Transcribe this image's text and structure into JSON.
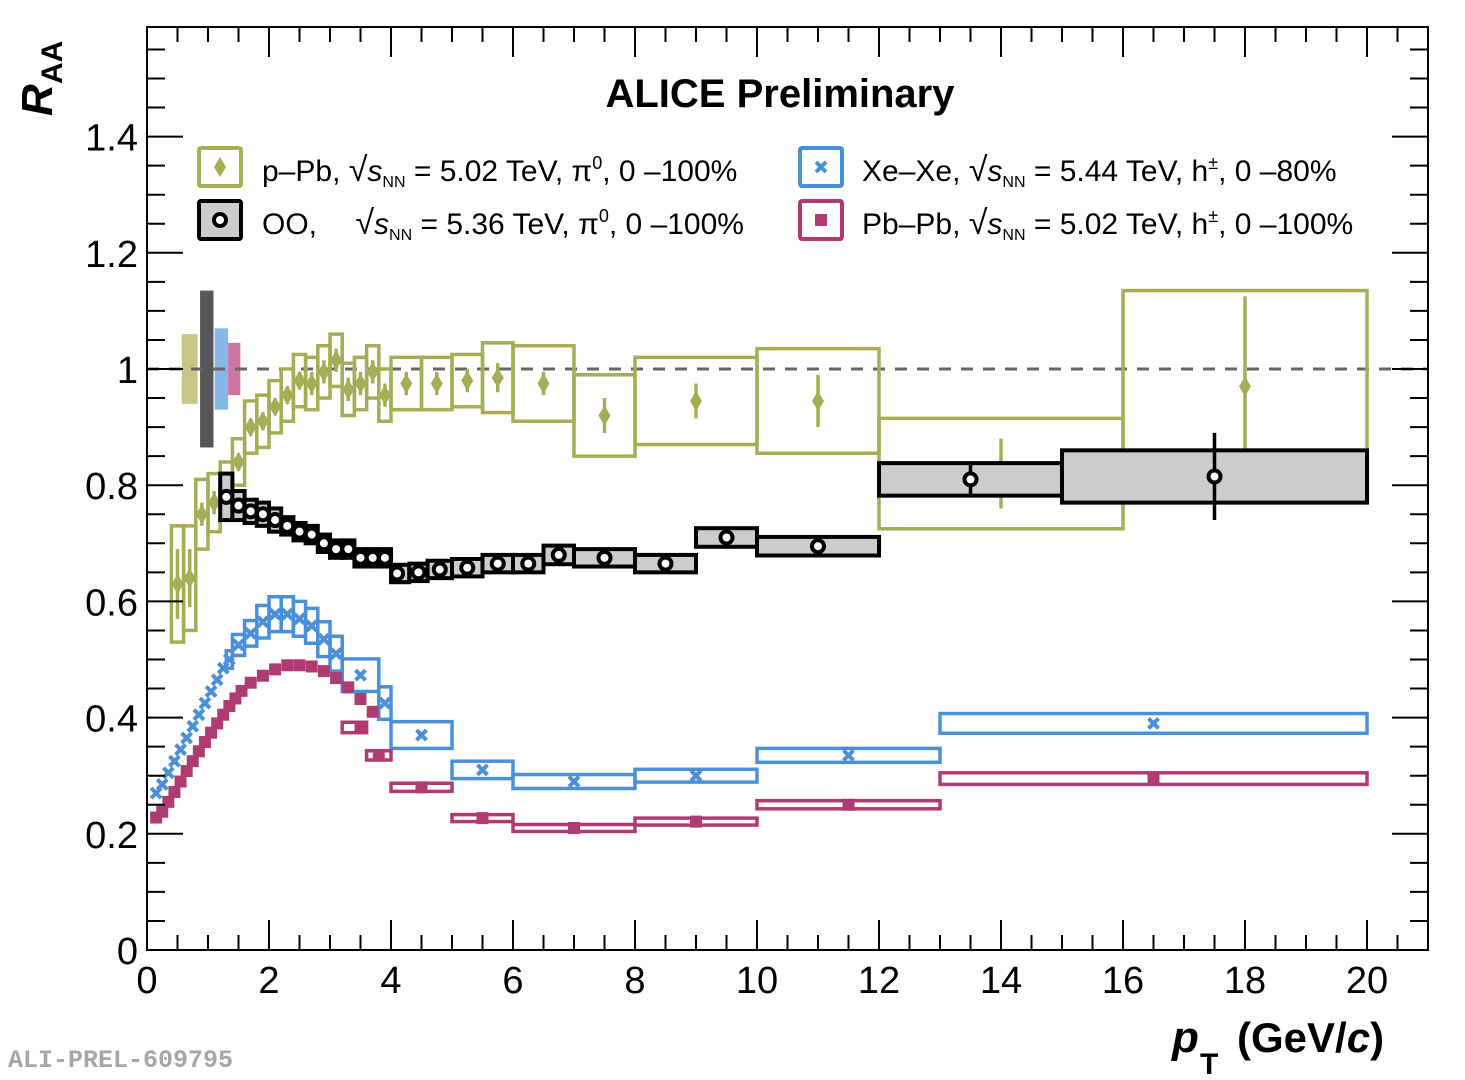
{
  "chart_data": {
    "type": "scatter",
    "title": "ALICE Preliminary",
    "xlabel": "p_T (GeV/c)",
    "xlabel_parts": {
      "main": "p",
      "sub": "T",
      "unit": "(GeV/",
      "unit_italic": "c",
      "close": ")"
    },
    "ylabel": "R_AA",
    "ylabel_parts": {
      "main": "R",
      "sub": "AA"
    },
    "xlim": [
      0,
      21
    ],
    "ylim": [
      0,
      1.6
    ],
    "xticks": [
      0,
      2,
      4,
      6,
      8,
      10,
      12,
      14,
      16,
      18,
      20
    ],
    "xtick_labels": [
      "0",
      "2",
      "4",
      "6",
      "8",
      "10",
      "12",
      "14",
      "16",
      "18",
      "20"
    ],
    "yticks": [
      0,
      0.2,
      0.4,
      0.6,
      0.8,
      1,
      1.2,
      1.4
    ],
    "ytick_labels": [
      "0",
      "0.2",
      "0.4",
      "0.6",
      "0.8",
      "1",
      "1.2",
      "1.4"
    ],
    "reference_line": {
      "y": 1,
      "style": "dashed",
      "color": "#666666"
    },
    "legend_placement": "top",
    "watermark": "ALI-PREL-609795",
    "normalization_boxes": [
      {
        "series": "p-Pb",
        "low": 0.94,
        "high": 1.06,
        "color": "#c3c383"
      },
      {
        "series": "OO",
        "low": 0.865,
        "high": 1.135,
        "color": "#4d4d4d"
      },
      {
        "series": "Xe-Xe",
        "low": 0.93,
        "high": 1.07,
        "color": "#7fb3e6"
      },
      {
        "series": "Pb-Pb",
        "low": 0.955,
        "high": 1.045,
        "color": "#c96f9f"
      }
    ],
    "series": [
      {
        "name": "p-Pb",
        "legend": {
          "sys": "p–Pb,",
          "sqrt": "s",
          "sub": "NN",
          "rest": "= 5.02 TeV, π",
          "sup": "0",
          "tail": ", 0 –100%"
        },
        "marker": "diamond",
        "color": "#a5ad55",
        "fill_box": "none",
        "points": [
          {
            "x": 0.5,
            "xlo": 0.4,
            "xhi": 0.6,
            "y": 0.63,
            "stat": 0.06,
            "sys": 0.1
          },
          {
            "x": 0.7,
            "xlo": 0.6,
            "xhi": 0.8,
            "y": 0.64,
            "stat": 0.05,
            "sys": 0.09
          },
          {
            "x": 0.9,
            "xlo": 0.8,
            "xhi": 1.0,
            "y": 0.75,
            "stat": 0.02,
            "sys": 0.06
          },
          {
            "x": 1.1,
            "xlo": 1.0,
            "xhi": 1.2,
            "y": 0.77,
            "stat": 0.02,
            "sys": 0.05
          },
          {
            "x": 1.3,
            "xlo": 1.2,
            "xhi": 1.4,
            "y": 0.8,
            "stat": 0.015,
            "sys": 0.04
          },
          {
            "x": 1.5,
            "xlo": 1.4,
            "xhi": 1.6,
            "y": 0.84,
            "stat": 0.015,
            "sys": 0.04
          },
          {
            "x": 1.7,
            "xlo": 1.6,
            "xhi": 1.8,
            "y": 0.9,
            "stat": 0.015,
            "sys": 0.045
          },
          {
            "x": 1.9,
            "xlo": 1.8,
            "xhi": 2.0,
            "y": 0.91,
            "stat": 0.015,
            "sys": 0.045
          },
          {
            "x": 2.1,
            "xlo": 2.0,
            "xhi": 2.2,
            "y": 0.935,
            "stat": 0.015,
            "sys": 0.045
          },
          {
            "x": 2.3,
            "xlo": 2.2,
            "xhi": 2.4,
            "y": 0.955,
            "stat": 0.015,
            "sys": 0.045
          },
          {
            "x": 2.5,
            "xlo": 2.4,
            "xhi": 2.6,
            "y": 0.98,
            "stat": 0.015,
            "sys": 0.045
          },
          {
            "x": 2.7,
            "xlo": 2.6,
            "xhi": 2.8,
            "y": 0.975,
            "stat": 0.02,
            "sys": 0.045
          },
          {
            "x": 2.9,
            "xlo": 2.8,
            "xhi": 3.0,
            "y": 0.995,
            "stat": 0.02,
            "sys": 0.045
          },
          {
            "x": 3.1,
            "xlo": 3.0,
            "xhi": 3.2,
            "y": 1.015,
            "stat": 0.02,
            "sys": 0.045
          },
          {
            "x": 3.3,
            "xlo": 3.2,
            "xhi": 3.4,
            "y": 0.965,
            "stat": 0.02,
            "sys": 0.045
          },
          {
            "x": 3.5,
            "xlo": 3.4,
            "xhi": 3.6,
            "y": 0.975,
            "stat": 0.02,
            "sys": 0.045
          },
          {
            "x": 3.7,
            "xlo": 3.6,
            "xhi": 3.8,
            "y": 0.995,
            "stat": 0.02,
            "sys": 0.045
          },
          {
            "x": 3.9,
            "xlo": 3.8,
            "xhi": 4.0,
            "y": 0.955,
            "stat": 0.02,
            "sys": 0.045
          },
          {
            "x": 4.25,
            "xlo": 4.0,
            "xhi": 4.5,
            "y": 0.975,
            "stat": 0.02,
            "sys": 0.045
          },
          {
            "x": 4.75,
            "xlo": 4.5,
            "xhi": 5.0,
            "y": 0.975,
            "stat": 0.02,
            "sys": 0.045
          },
          {
            "x": 5.25,
            "xlo": 5.0,
            "xhi": 5.5,
            "y": 0.98,
            "stat": 0.02,
            "sys": 0.045
          },
          {
            "x": 5.75,
            "xlo": 5.5,
            "xhi": 6.0,
            "y": 0.985,
            "stat": 0.025,
            "sys": 0.06
          },
          {
            "x": 6.5,
            "xlo": 6.0,
            "xhi": 7.0,
            "y": 0.975,
            "stat": 0.02,
            "sys": 0.065
          },
          {
            "x": 7.5,
            "xlo": 7.0,
            "xhi": 8.0,
            "y": 0.92,
            "stat": 0.03,
            "sys": 0.07
          },
          {
            "x": 9.0,
            "xlo": 8.0,
            "xhi": 10.0,
            "y": 0.945,
            "stat": 0.03,
            "sys": 0.075
          },
          {
            "x": 11.0,
            "xlo": 10.0,
            "xhi": 12.0,
            "y": 0.945,
            "stat": 0.045,
            "sys": 0.09
          },
          {
            "x": 14.0,
            "xlo": 12.0,
            "xhi": 16.0,
            "y": 0.82,
            "stat": 0.06,
            "sys": 0.095
          },
          {
            "x": 18.0,
            "xlo": 16.0,
            "xhi": 20.0,
            "y": 0.97,
            "stat": 0.155,
            "sys": 0.165
          }
        ]
      },
      {
        "name": "OO",
        "legend": {
          "sys": "OO,",
          "sqrt": "s",
          "sub": "NN",
          "rest": "= 5.36 TeV, π",
          "sup": "0",
          "tail": ", 0 –100%"
        },
        "marker": "open-circle",
        "color": "#000000",
        "fill_box": "#cccccc",
        "points": [
          {
            "x": 1.3,
            "xlo": 1.2,
            "xhi": 1.4,
            "y": 0.78,
            "stat": 0.01,
            "sys": 0.04
          },
          {
            "x": 1.5,
            "xlo": 1.4,
            "xhi": 1.6,
            "y": 0.765,
            "stat": 0.01,
            "sys": 0.025
          },
          {
            "x": 1.7,
            "xlo": 1.6,
            "xhi": 1.8,
            "y": 0.755,
            "stat": 0.01,
            "sys": 0.02
          },
          {
            "x": 1.9,
            "xlo": 1.8,
            "xhi": 2.0,
            "y": 0.75,
            "stat": 0.01,
            "sys": 0.02
          },
          {
            "x": 2.1,
            "xlo": 2.0,
            "xhi": 2.2,
            "y": 0.74,
            "stat": 0.01,
            "sys": 0.02
          },
          {
            "x": 2.3,
            "xlo": 2.2,
            "xhi": 2.4,
            "y": 0.73,
            "stat": 0.01,
            "sys": 0.015
          },
          {
            "x": 2.5,
            "xlo": 2.4,
            "xhi": 2.6,
            "y": 0.72,
            "stat": 0.01,
            "sys": 0.015
          },
          {
            "x": 2.7,
            "xlo": 2.6,
            "xhi": 2.8,
            "y": 0.715,
            "stat": 0.01,
            "sys": 0.015
          },
          {
            "x": 2.9,
            "xlo": 2.8,
            "xhi": 3.0,
            "y": 0.7,
            "stat": 0.01,
            "sys": 0.015
          },
          {
            "x": 3.1,
            "xlo": 3.0,
            "xhi": 3.2,
            "y": 0.69,
            "stat": 0.01,
            "sys": 0.015
          },
          {
            "x": 3.3,
            "xlo": 3.2,
            "xhi": 3.4,
            "y": 0.69,
            "stat": 0.01,
            "sys": 0.015
          },
          {
            "x": 3.5,
            "xlo": 3.4,
            "xhi": 3.6,
            "y": 0.675,
            "stat": 0.01,
            "sys": 0.015
          },
          {
            "x": 3.7,
            "xlo": 3.6,
            "xhi": 3.8,
            "y": 0.675,
            "stat": 0.01,
            "sys": 0.015
          },
          {
            "x": 3.9,
            "xlo": 3.8,
            "xhi": 4.0,
            "y": 0.675,
            "stat": 0.01,
            "sys": 0.015
          },
          {
            "x": 4.1,
            "xlo": 4.0,
            "xhi": 4.3,
            "y": 0.648,
            "stat": 0.01,
            "sys": 0.015
          },
          {
            "x": 4.45,
            "xlo": 4.3,
            "xhi": 4.6,
            "y": 0.65,
            "stat": 0.01,
            "sys": 0.015
          },
          {
            "x": 4.8,
            "xlo": 4.6,
            "xhi": 5.0,
            "y": 0.655,
            "stat": 0.01,
            "sys": 0.015
          },
          {
            "x": 5.25,
            "xlo": 5.0,
            "xhi": 5.5,
            "y": 0.658,
            "stat": 0.01,
            "sys": 0.015
          },
          {
            "x": 5.75,
            "xlo": 5.5,
            "xhi": 6.0,
            "y": 0.665,
            "stat": 0.01,
            "sys": 0.015
          },
          {
            "x": 6.25,
            "xlo": 6.0,
            "xhi": 6.5,
            "y": 0.665,
            "stat": 0.01,
            "sys": 0.015
          },
          {
            "x": 6.75,
            "xlo": 6.5,
            "xhi": 7.0,
            "y": 0.68,
            "stat": 0.01,
            "sys": 0.016
          },
          {
            "x": 7.5,
            "xlo": 7.0,
            "xhi": 8.0,
            "y": 0.675,
            "stat": 0.01,
            "sys": 0.015
          },
          {
            "x": 8.5,
            "xlo": 8.0,
            "xhi": 9.0,
            "y": 0.665,
            "stat": 0.01,
            "sys": 0.015
          },
          {
            "x": 9.5,
            "xlo": 9.0,
            "xhi": 10.0,
            "y": 0.71,
            "stat": 0.01,
            "sys": 0.016
          },
          {
            "x": 11.0,
            "xlo": 10.0,
            "xhi": 12.0,
            "y": 0.695,
            "stat": 0.01,
            "sys": 0.016
          },
          {
            "x": 13.5,
            "xlo": 12.0,
            "xhi": 15.0,
            "y": 0.81,
            "stat": 0.03,
            "sys": 0.028
          },
          {
            "x": 17.5,
            "xlo": 15.0,
            "xhi": 20.0,
            "y": 0.815,
            "stat": 0.075,
            "sys": 0.045
          }
        ]
      },
      {
        "name": "Xe-Xe",
        "legend": {
          "sys": "Xe–Xe,",
          "sqrt": "s",
          "sub": "NN",
          "rest": "= 5.44 TeV, h",
          "sup": "±",
          "tail": ", 0 –80%"
        },
        "marker": "cross",
        "color": "#4a90d9",
        "fill_box": "none",
        "points": [
          {
            "x": 0.15,
            "y": 0.27
          },
          {
            "x": 0.25,
            "y": 0.285
          },
          {
            "x": 0.35,
            "y": 0.305
          },
          {
            "x": 0.45,
            "y": 0.325
          },
          {
            "x": 0.55,
            "y": 0.345
          },
          {
            "x": 0.65,
            "y": 0.365
          },
          {
            "x": 0.75,
            "y": 0.385
          },
          {
            "x": 0.85,
            "y": 0.405
          },
          {
            "x": 0.95,
            "y": 0.425
          },
          {
            "x": 1.05,
            "y": 0.445
          },
          {
            "x": 1.15,
            "y": 0.465
          },
          {
            "x": 1.25,
            "y": 0.485
          },
          {
            "x": 1.35,
            "y": 0.5,
            "xlo": 1.3,
            "xhi": 1.4,
            "sys": 0.015
          },
          {
            "x": 1.5,
            "xlo": 1.4,
            "xhi": 1.6,
            "y": 0.525,
            "sys": 0.018
          },
          {
            "x": 1.7,
            "xlo": 1.6,
            "xhi": 1.8,
            "y": 0.545,
            "sys": 0.022
          },
          {
            "x": 1.9,
            "xlo": 1.8,
            "xhi": 2.0,
            "y": 0.565,
            "sys": 0.028
          },
          {
            "x": 2.1,
            "xlo": 2.0,
            "xhi": 2.2,
            "y": 0.578,
            "sys": 0.03
          },
          {
            "x": 2.3,
            "xlo": 2.2,
            "xhi": 2.4,
            "y": 0.578,
            "sys": 0.03
          },
          {
            "x": 2.5,
            "xlo": 2.4,
            "xhi": 2.6,
            "y": 0.57,
            "sys": 0.03
          },
          {
            "x": 2.7,
            "xlo": 2.6,
            "xhi": 2.8,
            "y": 0.558,
            "sys": 0.03
          },
          {
            "x": 2.9,
            "xlo": 2.8,
            "xhi": 3.0,
            "y": 0.535,
            "sys": 0.03
          },
          {
            "x": 3.1,
            "xlo": 3.0,
            "xhi": 3.2,
            "y": 0.51,
            "sys": 0.03
          },
          {
            "x": 3.5,
            "xlo": 3.2,
            "xhi": 3.8,
            "y": 0.473,
            "sys": 0.028
          },
          {
            "x": 3.9,
            "xlo": 3.8,
            "xhi": 4.0,
            "y": 0.425,
            "sys": 0.028
          },
          {
            "x": 4.5,
            "xlo": 4.0,
            "xhi": 5.0,
            "y": 0.37,
            "sys": 0.023
          },
          {
            "x": 5.5,
            "xlo": 5.0,
            "xhi": 6.0,
            "y": 0.31,
            "sys": 0.015
          },
          {
            "x": 7.0,
            "xlo": 6.0,
            "xhi": 8.0,
            "y": 0.29,
            "sys": 0.012
          },
          {
            "x": 9.0,
            "xlo": 8.0,
            "xhi": 10.0,
            "y": 0.3,
            "sys": 0.011
          },
          {
            "x": 11.5,
            "xlo": 10.0,
            "xhi": 13.0,
            "y": 0.335,
            "sys": 0.012
          },
          {
            "x": 16.5,
            "xlo": 13.0,
            "xhi": 20.0,
            "y": 0.39,
            "sys": 0.017
          }
        ]
      },
      {
        "name": "Pb-Pb",
        "legend": {
          "sys": "Pb–Pb,",
          "sqrt": "s",
          "sub": "NN",
          "rest": "= 5.02 TeV, h",
          "sup": "±",
          "tail": ", 0 –100%"
        },
        "marker": "square",
        "color": "#b03a72",
        "fill_box": "none",
        "points": [
          {
            "x": 0.15,
            "y": 0.228
          },
          {
            "x": 0.25,
            "y": 0.238
          },
          {
            "x": 0.35,
            "y": 0.255
          },
          {
            "x": 0.45,
            "y": 0.272
          },
          {
            "x": 0.55,
            "y": 0.29
          },
          {
            "x": 0.65,
            "y": 0.308
          },
          {
            "x": 0.75,
            "y": 0.325
          },
          {
            "x": 0.85,
            "y": 0.342
          },
          {
            "x": 0.95,
            "y": 0.358
          },
          {
            "x": 1.05,
            "y": 0.374
          },
          {
            "x": 1.15,
            "y": 0.39
          },
          {
            "x": 1.25,
            "y": 0.405
          },
          {
            "x": 1.35,
            "y": 0.42
          },
          {
            "x": 1.45,
            "y": 0.433
          },
          {
            "x": 1.55,
            "y": 0.446
          },
          {
            "x": 1.7,
            "y": 0.46
          },
          {
            "x": 1.9,
            "y": 0.472
          },
          {
            "x": 2.1,
            "y": 0.483
          },
          {
            "x": 2.3,
            "y": 0.49
          },
          {
            "x": 2.5,
            "y": 0.49
          },
          {
            "x": 2.7,
            "y": 0.488
          },
          {
            "x": 2.9,
            "y": 0.48
          },
          {
            "x": 3.1,
            "y": 0.468
          },
          {
            "x": 3.3,
            "y": 0.452
          },
          {
            "x": 3.5,
            "y": 0.432
          },
          {
            "x": 3.7,
            "y": 0.41
          },
          {
            "x": 3.5,
            "xlo": 3.2,
            "xhi": 3.6,
            "y": 0.383,
            "sys": 0.009
          },
          {
            "x": 3.8,
            "xlo": 3.6,
            "xhi": 4.0,
            "y": 0.335,
            "sys": 0.008
          },
          {
            "x": 4.5,
            "xlo": 4.0,
            "xhi": 5.0,
            "y": 0.28,
            "sys": 0.007
          },
          {
            "x": 5.5,
            "xlo": 5.0,
            "xhi": 6.0,
            "y": 0.227,
            "sys": 0.006
          },
          {
            "x": 7.0,
            "xlo": 6.0,
            "xhi": 8.0,
            "y": 0.21,
            "sys": 0.006
          },
          {
            "x": 9.0,
            "xlo": 8.0,
            "xhi": 10.0,
            "y": 0.221,
            "sys": 0.006
          },
          {
            "x": 11.5,
            "xlo": 10.0,
            "xhi": 13.0,
            "y": 0.25,
            "sys": 0.007
          },
          {
            "x": 16.5,
            "xlo": 13.0,
            "xhi": 20.0,
            "y": 0.295,
            "sys": 0.01
          }
        ]
      }
    ]
  }
}
